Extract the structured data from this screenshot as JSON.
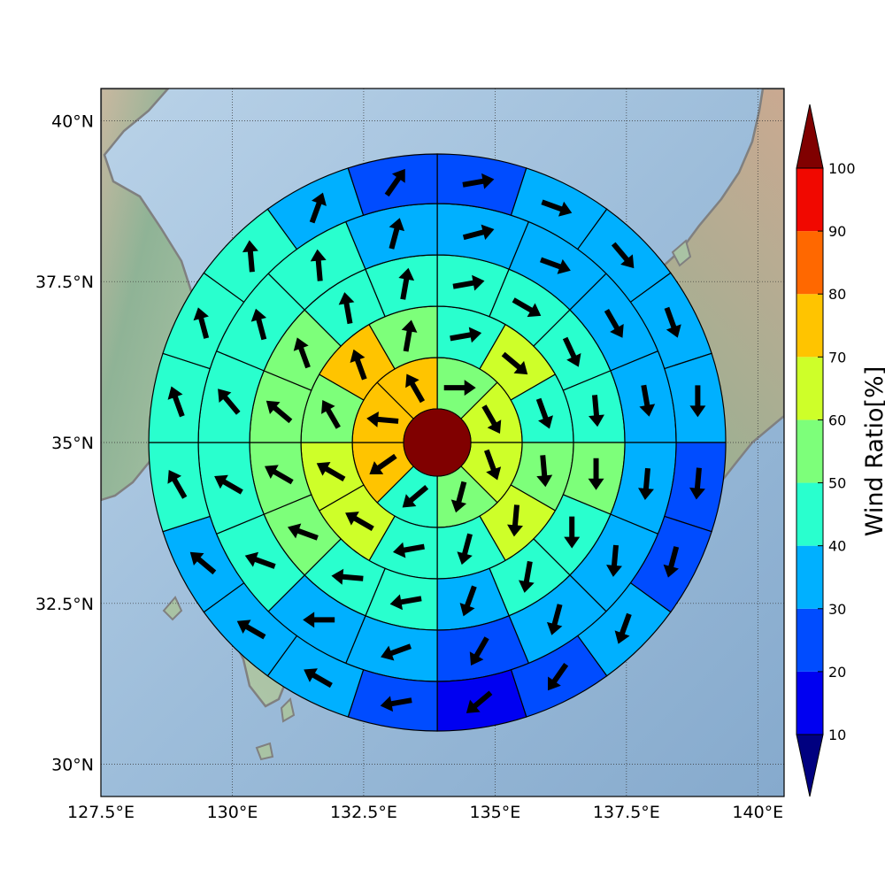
{
  "chart_data": {
    "type": "polar-sector-wind-map",
    "projection_extent": {
      "lon": [
        127.5,
        140.5
      ],
      "lat": [
        29.5,
        40.5
      ]
    },
    "lon_ticks": [
      {
        "value": 127.5,
        "label": "127.5°E"
      },
      {
        "value": 130,
        "label": "130°E"
      },
      {
        "value": 132.5,
        "label": "132.5°E"
      },
      {
        "value": 135,
        "label": "135°E"
      },
      {
        "value": 137.5,
        "label": "137.5°E"
      },
      {
        "value": 140,
        "label": "140°E"
      }
    ],
    "lat_ticks": [
      {
        "value": 30,
        "label": "30°N"
      },
      {
        "value": 32.5,
        "label": "32.5°N"
      },
      {
        "value": 35,
        "label": "35°N"
      },
      {
        "value": 37.5,
        "label": "37.5°N"
      },
      {
        "value": 40,
        "label": "40°N"
      }
    ],
    "grid": true,
    "center": {
      "lon": 133.9,
      "lat": 35.0,
      "value": 100
    },
    "colorbar": {
      "label": "Wind Ratio[%]",
      "levels": [
        10,
        20,
        30,
        40,
        50,
        60,
        70,
        80,
        90,
        100
      ],
      "colors": [
        "#000080",
        "#0000f1",
        "#004cff",
        "#00b0ff",
        "#29ffce",
        "#7dff7a",
        "#ceff29",
        "#ffc400",
        "#ff6800",
        "#f10800",
        "#800000"
      ],
      "extend": "both"
    },
    "rings": [
      {
        "ring": 1,
        "sectors": 8,
        "values": [
          55,
          65,
          65,
          55,
          45,
          70,
          70,
          70
        ],
        "arrows_deg": [
          90,
          150,
          160,
          195,
          230,
          235,
          275,
          330
        ]
      },
      {
        "ring": 2,
        "sectors": 12,
        "values": [
          45,
          65,
          45,
          55,
          65,
          45,
          45,
          65,
          65,
          55,
          75,
          55
        ],
        "arrows_deg": [
          80,
          130,
          160,
          175,
          185,
          195,
          260,
          300,
          300,
          330,
          340,
          10
        ]
      },
      {
        "ring": 3,
        "sectors": 16,
        "values": [
          45,
          45,
          45,
          45,
          55,
          45,
          45,
          35,
          45,
          45,
          55,
          55,
          55,
          55,
          45,
          45
        ],
        "arrows_deg": [
          80,
          120,
          155,
          175,
          180,
          180,
          190,
          200,
          260,
          275,
          290,
          300,
          310,
          340,
          350,
          10
        ]
      },
      {
        "ring": 4,
        "sectors": 16,
        "values": [
          35,
          35,
          35,
          35,
          35,
          35,
          35,
          25,
          35,
          35,
          45,
          45,
          45,
          45,
          45,
          35
        ],
        "arrows_deg": [
          75,
          110,
          150,
          170,
          185,
          185,
          195,
          210,
          250,
          270,
          290,
          300,
          320,
          345,
          355,
          15
        ]
      },
      {
        "ring": 5,
        "sectors": 20,
        "values": [
          25,
          35,
          35,
          35,
          35,
          25,
          25,
          35,
          25,
          15,
          25,
          35,
          35,
          35,
          45,
          45,
          45,
          45,
          35,
          25
        ],
        "arrows_deg": [
          80,
          110,
          140,
          160,
          180,
          185,
          195,
          200,
          215,
          230,
          260,
          300,
          300,
          310,
          330,
          340,
          345,
          355,
          20,
          35
        ]
      }
    ]
  }
}
